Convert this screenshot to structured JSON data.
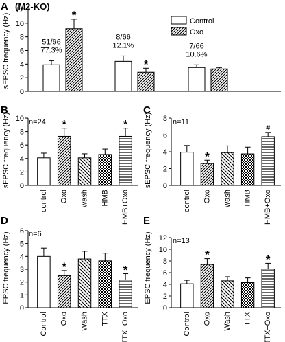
{
  "chart_data": [
    {
      "panel": "A",
      "type": "bar",
      "title": "(M2-KO)",
      "ylabel": "sEPSC frequency (Hz)",
      "ylim": [
        0,
        12
      ],
      "yticks": [
        0,
        2,
        4,
        6,
        8,
        10,
        12
      ],
      "legend": {
        "position": "top-right",
        "entries": [
          "Control",
          "Oxo"
        ]
      },
      "groups": [
        {
          "annotation": [
            "51/66",
            "77.3%"
          ],
          "control": 3.9,
          "control_err": 0.6,
          "oxo": 9.2,
          "oxo_err": 1.4,
          "marks": [
            "",
            "*"
          ]
        },
        {
          "annotation": [
            "8/66",
            "12.1%"
          ],
          "control": 4.4,
          "control_err": 0.8,
          "oxo": 2.8,
          "oxo_err": 0.6,
          "marks": [
            "",
            "*"
          ]
        },
        {
          "annotation": [
            "7/66",
            "10.6%"
          ],
          "control": 3.5,
          "control_err": 0.4,
          "oxo": 3.3,
          "oxo_err": 0.2,
          "marks": [
            "",
            ""
          ]
        }
      ]
    },
    {
      "panel": "B",
      "type": "bar",
      "ylabel": "sEPSC frequency (Hz)",
      "n_label": "n=24",
      "ylim": [
        0,
        10
      ],
      "yticks": [
        0,
        2,
        4,
        6,
        8,
        10
      ],
      "categories": [
        "control",
        "Oxo",
        "wash",
        "HMB",
        "HMB+Oxo"
      ],
      "values": [
        4.1,
        7.3,
        4.1,
        4.6,
        7.3
      ],
      "errors": [
        0.7,
        1.2,
        0.6,
        0.8,
        1.2
      ],
      "patterns": [
        "white",
        "diag",
        "diag2",
        "check",
        "hstripe"
      ],
      "marks": [
        "",
        "*",
        "",
        "",
        "*"
      ]
    },
    {
      "panel": "C",
      "type": "bar",
      "ylabel": "sEPSC frequency (Hz)",
      "n_label": "n=11",
      "ylim": [
        0,
        8
      ],
      "yticks": [
        0,
        2,
        4,
        6,
        8
      ],
      "categories": [
        "control",
        "Oxo",
        "wash",
        "HMB",
        "HMB+Oxo"
      ],
      "values": [
        3.95,
        2.6,
        3.9,
        3.75,
        5.8
      ],
      "errors": [
        0.8,
        0.4,
        0.8,
        0.8,
        0.5
      ],
      "patterns": [
        "white",
        "diag",
        "diag2",
        "check",
        "hstripe"
      ],
      "marks": [
        "",
        "*",
        "",
        "",
        "#"
      ]
    },
    {
      "panel": "D",
      "type": "bar",
      "ylabel": "EPSC frequency (Hz)",
      "n_label": "n=6",
      "ylim": [
        0,
        6
      ],
      "yticks": [
        0,
        1,
        2,
        3,
        4,
        5,
        6
      ],
      "categories": [
        "Control",
        "Oxo",
        "Wash",
        "TTX",
        "TTX+Oxo"
      ],
      "values": [
        4.0,
        2.5,
        3.8,
        3.65,
        2.15
      ],
      "errors": [
        0.65,
        0.4,
        0.6,
        0.6,
        0.5
      ],
      "patterns": [
        "white",
        "diag",
        "diag2",
        "check",
        "hstripe"
      ],
      "marks": [
        "",
        "*",
        "",
        "",
        "*"
      ]
    },
    {
      "panel": "E",
      "type": "bar",
      "ylabel": "EPSC frequency (Hz)",
      "n_label": "n=13",
      "ylim": [
        0,
        12
      ],
      "yticks": [
        0,
        2,
        4,
        6,
        8,
        10,
        12
      ],
      "categories": [
        "Control",
        "Oxo",
        "Wash",
        "TTX",
        "TTX+Oxo"
      ],
      "values": [
        4.1,
        7.4,
        4.6,
        4.3,
        6.6
      ],
      "errors": [
        0.6,
        1.0,
        0.7,
        0.8,
        1.0
      ],
      "patterns": [
        "white",
        "diag",
        "diag2",
        "check",
        "hstripe"
      ],
      "marks": [
        "",
        "*",
        "",
        "",
        "*"
      ]
    }
  ]
}
